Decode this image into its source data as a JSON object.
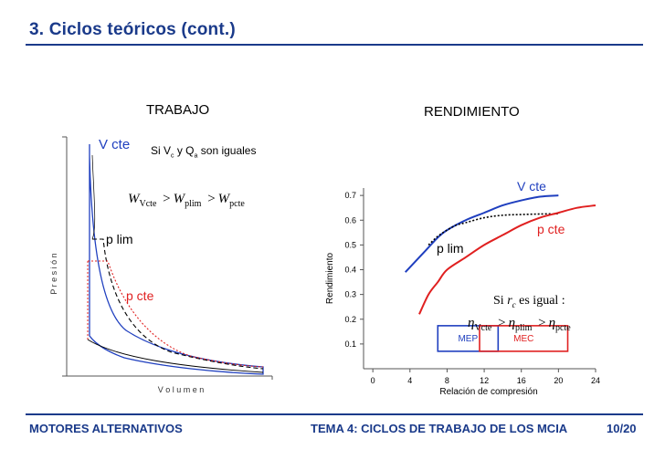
{
  "header": {
    "title": "3. Ciclos teóricos (cont.)"
  },
  "left_panel": {
    "heading": "TRABAJO",
    "ylabel": "P r e s i ó n",
    "xlabel": "V o l u m e n",
    "label_vcte": "V cte",
    "label_plim": "p lim",
    "label_pcte": "p cte",
    "note": "Si V",
    "note_sub1": "c",
    "note_mid": " y Q",
    "note_sub2": "a",
    "note_end": " son iguales",
    "eq_w1": "W",
    "eq_s1": "Vcte",
    "eq_w2": "W",
    "eq_s2": "plim",
    "eq_w3": "W",
    "eq_s3": "pcte",
    "eq_gt": ">"
  },
  "right_panel": {
    "heading": "RENDIMIENTO",
    "label_vcte": "V cte",
    "label_plim": "p lim",
    "label_pcte": "p cte",
    "cond_a": "Si ",
    "cond_r": "r",
    "cond_c": "c",
    "cond_b": " es igual :",
    "eta": "η",
    "eta_s1": "Vcte",
    "eta_s2": "plim",
    "eta_s3": "pcte",
    "gt": ">",
    "mep": "MEP",
    "mec": "MEC"
  },
  "chart_data": {
    "type": "line",
    "xlabel": "Relación de compresión",
    "ylabel": "Rendimiento",
    "xticks": [
      0,
      4,
      8,
      12,
      16,
      20,
      24
    ],
    "yticks": [
      0.1,
      0.2,
      0.3,
      0.4,
      0.5,
      0.6,
      0.7
    ],
    "xlim": [
      -1,
      24
    ],
    "ylim": [
      0,
      0.73
    ],
    "series": [
      {
        "name": "V cte",
        "color": "#1f3fbf",
        "dash": false,
        "x": [
          3.5,
          5,
          6,
          7,
          8,
          10,
          12,
          14,
          16,
          18,
          20
        ],
        "y": [
          0.39,
          0.45,
          0.49,
          0.53,
          0.56,
          0.6,
          0.63,
          0.66,
          0.68,
          0.695,
          0.7
        ]
      },
      {
        "name": "p lim",
        "color": "#000000",
        "dash": true,
        "x": [
          6,
          7,
          8,
          9,
          10,
          12,
          14,
          16,
          18,
          20
        ],
        "y": [
          0.5,
          0.535,
          0.56,
          0.58,
          0.59,
          0.61,
          0.62,
          0.623,
          0.625,
          0.626
        ]
      },
      {
        "name": "p cte",
        "color": "#e02020",
        "dash": false,
        "x": [
          5,
          6,
          7,
          8,
          10,
          12,
          14,
          16,
          18,
          20,
          22,
          24
        ],
        "y": [
          0.22,
          0.3,
          0.35,
          0.4,
          0.45,
          0.5,
          0.54,
          0.58,
          0.61,
          0.63,
          0.65,
          0.66
        ]
      }
    ],
    "ranges": [
      {
        "name": "MEP",
        "x0": 7,
        "x1": 13.5,
        "color": "#1f3fbf"
      },
      {
        "name": "MEC",
        "x0": 11.5,
        "x1": 21,
        "color": "#e02020"
      }
    ]
  },
  "footer": {
    "left": "MOTORES ALTERNATIVOS",
    "center": "TEMA 4: CICLOS DE TRABAJO DE LOS MCIA",
    "right": "10/20"
  }
}
